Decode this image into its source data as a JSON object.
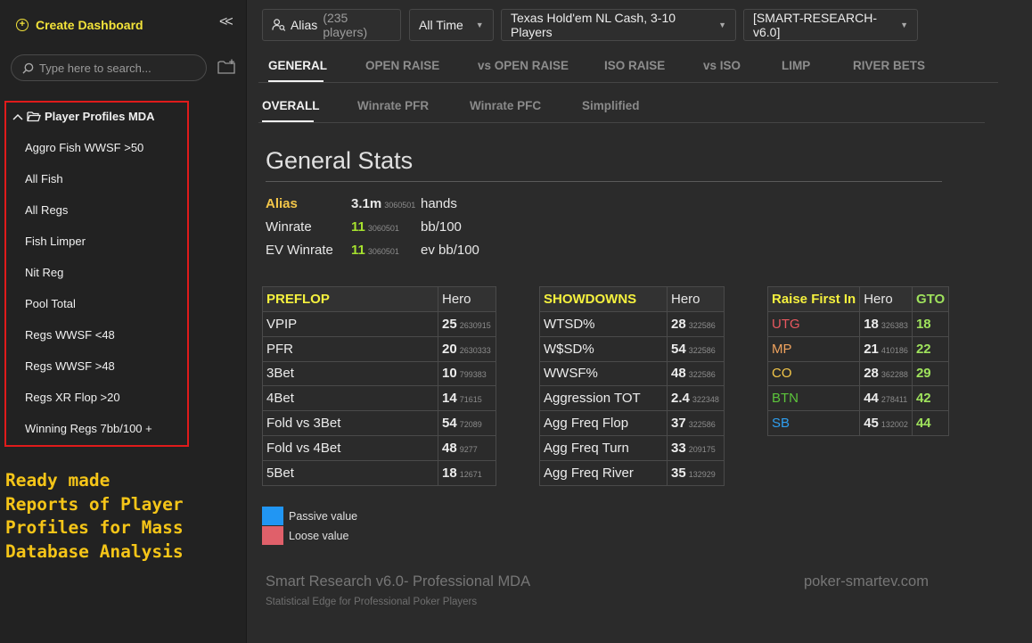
{
  "sidebar": {
    "create_label": "Create Dashboard",
    "collapse_label": "<<",
    "search_placeholder": "Type here to search...",
    "tree": {
      "folder_label": "Player Profiles MDA",
      "items": [
        {
          "label": "Aggro Fish WWSF >50"
        },
        {
          "label": "All Fish"
        },
        {
          "label": "All Regs"
        },
        {
          "label": "Fish Limper"
        },
        {
          "label": "Nit Reg"
        },
        {
          "label": "Pool Total"
        },
        {
          "label": "Regs WWSF <48"
        },
        {
          "label": "Regs WWSF >48"
        },
        {
          "label": "Regs XR Flop >20"
        },
        {
          "label": "Winning Regs 7bb/100 +"
        }
      ]
    },
    "promo_text": "Ready made\nReports of Player\nProfiles for Mass\nDatabase Analysis"
  },
  "filters": {
    "alias_label": "Alias",
    "alias_count": "(235 players)",
    "time": "All Time",
    "game": "Texas Hold'em NL Cash, 3-10 Players",
    "profile": "[SMART-RESEARCH-v6.0]"
  },
  "tabs": [
    {
      "label": "GENERAL"
    },
    {
      "label": "OPEN RAISE"
    },
    {
      "label": "vs OPEN RAISE"
    },
    {
      "label": "ISO RAISE"
    },
    {
      "label": "vs ISO"
    },
    {
      "label": "LIMP"
    },
    {
      "label": "RIVER BETS"
    }
  ],
  "subtabs": [
    {
      "label": "OVERALL"
    },
    {
      "label": "Winrate PFR"
    },
    {
      "label": "Winrate PFC"
    },
    {
      "label": "Simplified"
    }
  ],
  "general": {
    "title": "General Stats",
    "summary": [
      {
        "key": "Alias",
        "value": "3.1m",
        "sample": "3060501",
        "unit": "hands"
      },
      {
        "key": "Winrate",
        "value": "11",
        "sample": "3060501",
        "unit": "bb/100"
      },
      {
        "key": "EV Winrate",
        "value": "11",
        "sample": "3060501",
        "unit": "ev bb/100"
      }
    ]
  },
  "preflop": {
    "header": "PREFLOP",
    "col": "Hero",
    "rows": [
      {
        "name": "VPIP",
        "value": "25",
        "sample": "2630915"
      },
      {
        "name": "PFR",
        "value": "20",
        "sample": "2630333"
      },
      {
        "name": "3Bet",
        "value": "10",
        "sample": "799383"
      },
      {
        "name": "4Bet",
        "value": "14",
        "sample": "71615"
      },
      {
        "name": "Fold vs 3Bet",
        "value": "54",
        "sample": "72089"
      },
      {
        "name": "Fold vs 4Bet",
        "value": "48",
        "sample": "9277"
      },
      {
        "name": "5Bet",
        "value": "18",
        "sample": "12671"
      }
    ]
  },
  "showdowns": {
    "header": "SHOWDOWNS",
    "col": "Hero",
    "rows": [
      {
        "name": "WTSD%",
        "value": "28",
        "sample": "322586"
      },
      {
        "name": "W$SD%",
        "value": "54",
        "sample": "322586"
      },
      {
        "name": "WWSF%",
        "value": "48",
        "sample": "322586"
      },
      {
        "name": "Aggression TOT",
        "value": "2.4",
        "sample": "322348"
      },
      {
        "name": "Agg Freq Flop",
        "value": "37",
        "sample": "322586"
      },
      {
        "name": "Agg Freq Turn",
        "value": "33",
        "sample": "209175"
      },
      {
        "name": "Agg Freq River",
        "value": "35",
        "sample": "132929"
      }
    ]
  },
  "rfi": {
    "header": "Raise First In",
    "col": "Hero",
    "col2": "GTO",
    "rows": [
      {
        "name": "UTG",
        "color": "#e8585f",
        "value": "18",
        "sample": "326383",
        "gto": "18"
      },
      {
        "name": "MP",
        "color": "#f0a35e",
        "value": "21",
        "sample": "410186",
        "gto": "22"
      },
      {
        "name": "CO",
        "color": "#f3c649",
        "value": "28",
        "sample": "362288",
        "gto": "29"
      },
      {
        "name": "BTN",
        "color": "#5cc43b",
        "value": "44",
        "sample": "278411",
        "gto": "42"
      },
      {
        "name": "SB",
        "color": "#2e9ff0",
        "value": "45",
        "sample": "132002",
        "gto": "44"
      }
    ]
  },
  "legend": [
    {
      "label": "Passive value",
      "color": "#2196f3"
    },
    {
      "label": "Loose value",
      "color": "#e0606a"
    }
  ],
  "footer": {
    "title": "Smart Research v6.0- Professional MDA",
    "subtitle": "Statistical Edge for Professional Poker Players",
    "site": "poker-smartev.com"
  }
}
